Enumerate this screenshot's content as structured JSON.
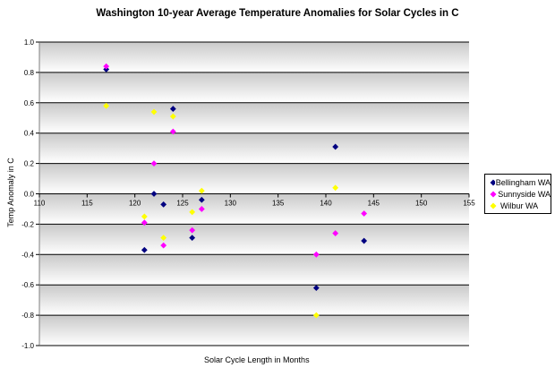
{
  "chart_data": {
    "type": "scatter",
    "title": "Washington 10-year Average Temperature Anomalies for Solar Cycles in C",
    "xlabel": "Solar Cycle Length in Months",
    "ylabel": "Temp Anomaly in C",
    "xlim": [
      110,
      155
    ],
    "ylim": [
      -1.0,
      1.0
    ],
    "x_ticks": [
      "110",
      "115",
      "120",
      "125",
      "130",
      "135",
      "140",
      "145",
      "150",
      "155"
    ],
    "y_ticks": [
      "1.0",
      "0.8",
      "0.6",
      "0.4",
      "0.2",
      "0.0",
      "-0.2",
      "-0.4",
      "-0.6",
      "-0.8",
      "-1.0"
    ],
    "grid": "horizontal",
    "legend_position": "right",
    "series": [
      {
        "name": "Bellingham WA",
        "color": "#000080",
        "points": [
          [
            117,
            0.82
          ],
          [
            121,
            -0.37
          ],
          [
            122,
            0.0
          ],
          [
            123,
            -0.07
          ],
          [
            124,
            0.56
          ],
          [
            126,
            -0.29
          ],
          [
            127,
            -0.04
          ],
          [
            139,
            -0.62
          ],
          [
            141,
            0.31
          ],
          [
            144,
            -0.31
          ]
        ]
      },
      {
        "name": "Sunnyside WA",
        "color": "#ff00ff",
        "points": [
          [
            117,
            0.84
          ],
          [
            121,
            -0.19
          ],
          [
            122,
            0.2
          ],
          [
            123,
            -0.34
          ],
          [
            124,
            0.41
          ],
          [
            126,
            -0.24
          ],
          [
            127,
            -0.1
          ],
          [
            139,
            -0.4
          ],
          [
            141,
            -0.26
          ],
          [
            144,
            -0.13
          ]
        ]
      },
      {
        "name": "Wilbur WA",
        "color": "#ffff00",
        "points": [
          [
            117,
            0.58
          ],
          [
            121,
            -0.15
          ],
          [
            122,
            0.54
          ],
          [
            123,
            -0.29
          ],
          [
            124,
            0.51
          ],
          [
            126,
            -0.12
          ],
          [
            127,
            0.02
          ],
          [
            139,
            -0.8
          ],
          [
            141,
            0.04
          ]
        ]
      }
    ]
  }
}
